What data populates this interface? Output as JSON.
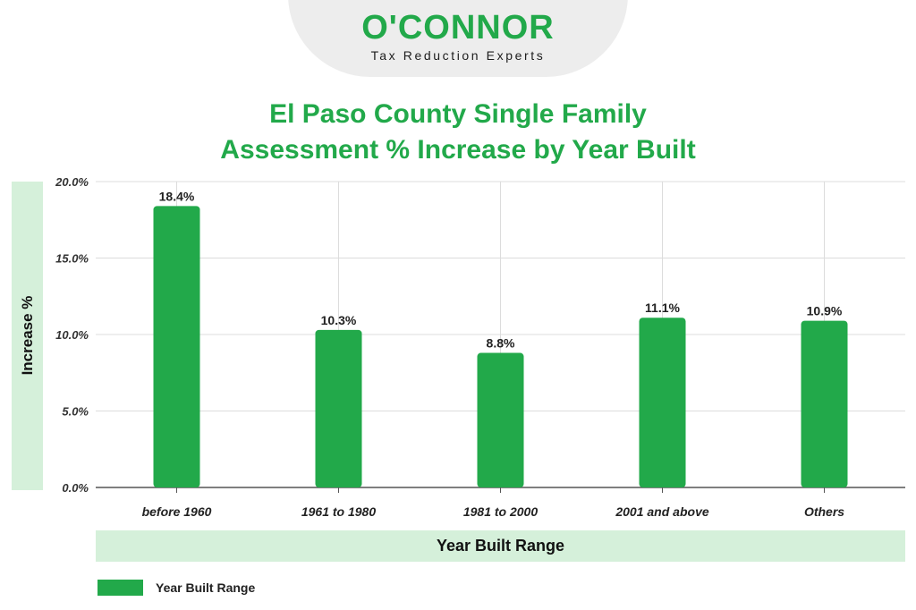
{
  "brand": {
    "name": "O'CONNOR",
    "tagline": "Tax Reduction Experts"
  },
  "colors": {
    "accent": "#22a94a",
    "band": "#d5f0da",
    "grid": "#dcdcdc"
  },
  "chart_data": {
    "type": "bar",
    "title_line1": "El Paso County Single Family",
    "title_line2": "Assessment % Increase by Year Built",
    "xlabel": "Year Built Range",
    "ylabel": "Increase %",
    "categories": [
      "before 1960",
      "1961 to 1980",
      "1981 to 2000",
      "2001 and above",
      "Others"
    ],
    "series": [
      {
        "name": "Year Built Range",
        "values": [
          18.4,
          10.3,
          8.8,
          11.1,
          10.9
        ]
      }
    ],
    "data_labels": [
      "18.4%",
      "10.3%",
      "8.8%",
      "11.1%",
      "10.9%"
    ],
    "ylim": [
      0,
      20
    ],
    "yticks": [
      0,
      5,
      10,
      15,
      20
    ],
    "ytick_labels": [
      "0.0%",
      "5.0%",
      "10.0%",
      "15.0%",
      "20.0%"
    ],
    "grid": true,
    "legend": "bottom-left"
  }
}
